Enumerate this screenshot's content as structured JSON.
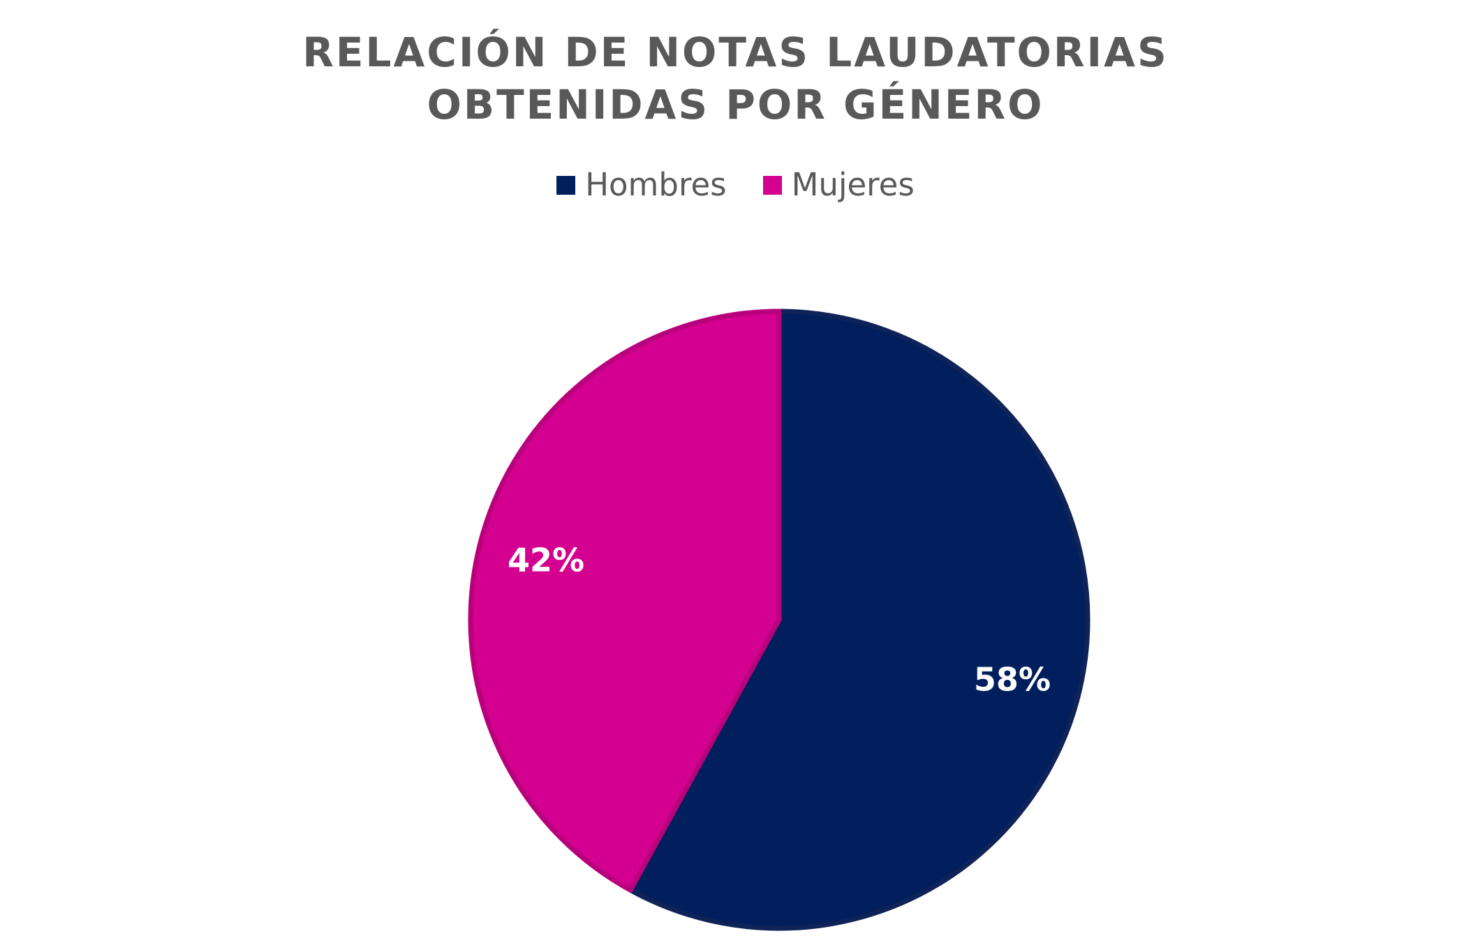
{
  "chart_data": {
    "type": "pie",
    "title": "RELACIÓN DE NOTAS LAUDATORIAS OBTENIDAS POR GÉNERO",
    "title_lines": [
      "RELACIÓN DE NOTAS LAUDATORIAS",
      "OBTENIDAS POR GÉNERO"
    ],
    "legend_position": "top",
    "categories": [
      "Hombres",
      "Mujeres"
    ],
    "values": [
      58,
      42
    ],
    "data_labels": [
      "58%",
      "42%"
    ],
    "colors": [
      "#001f5c",
      "#d4008f"
    ],
    "border_colors": [
      "#0f2358",
      "#b8007d"
    ]
  }
}
